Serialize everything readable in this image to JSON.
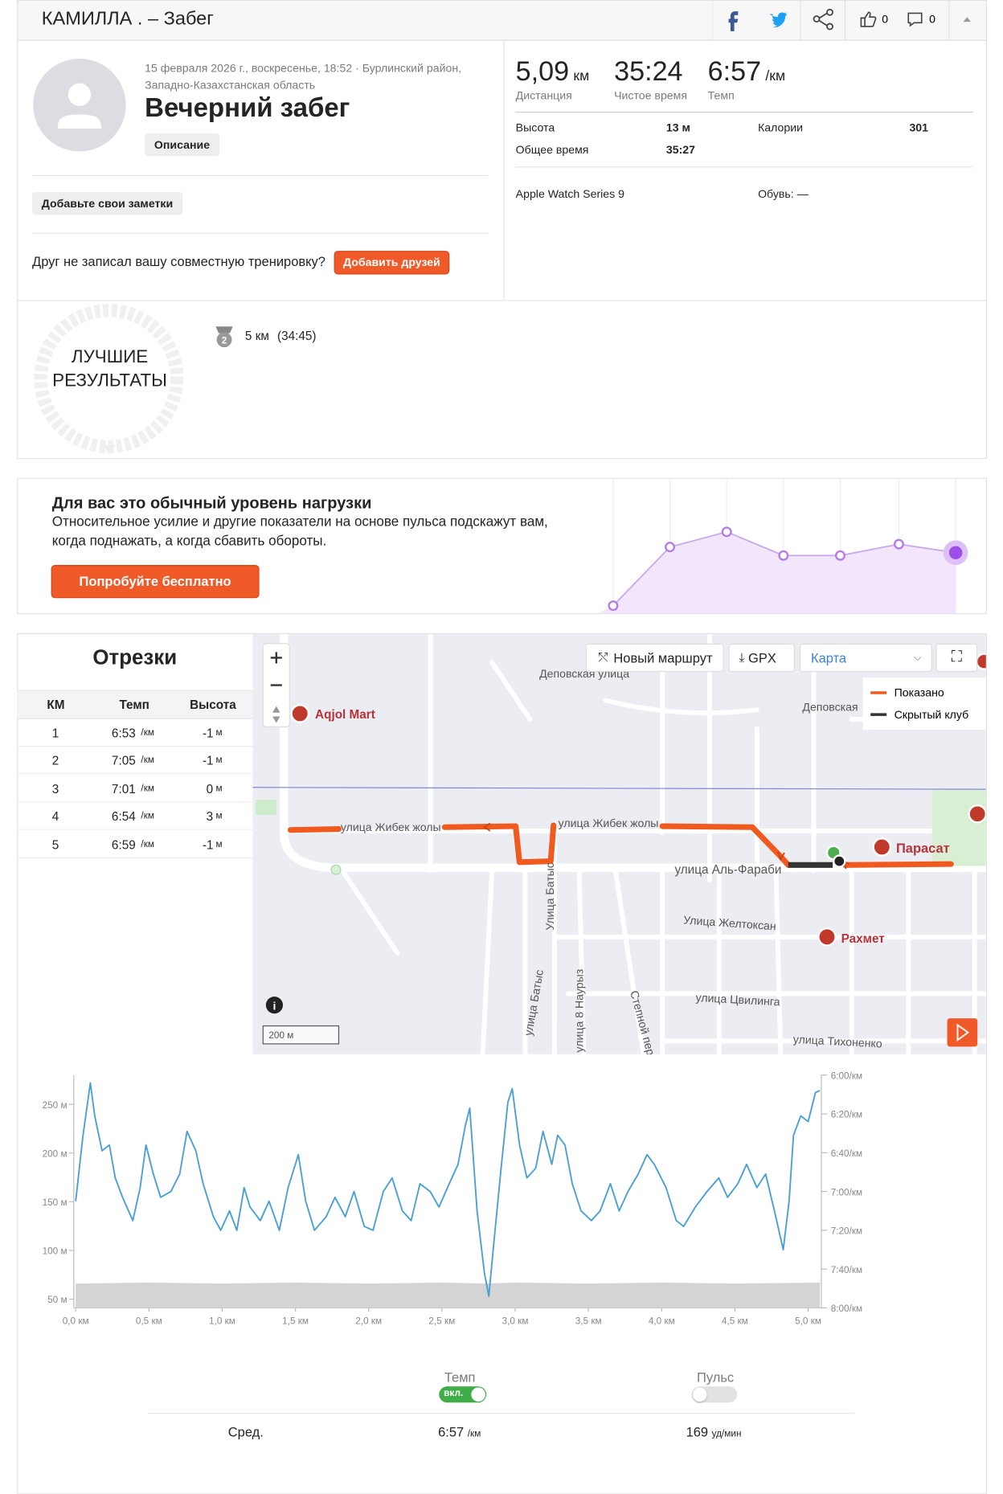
{
  "header": {
    "title": "КАМИЛЛА . – Забег",
    "likes": "0",
    "comments": "0"
  },
  "activity": {
    "date": "15 февраля 2026 г., воскресенье, 18:52 · Бурлинский район,",
    "region": "Западно-Казахстанская область",
    "title": "Вечерний забег",
    "description_button": "Описание",
    "notes_button": "Добавьте свои заметки",
    "friend_prompt": "Друг не записал вашу совместную тренировку?",
    "add_friends_button": "Добавить друзей"
  },
  "stats": {
    "primary": [
      {
        "value": "5,09",
        "unit": "км",
        "label": "Дистанция"
      },
      {
        "value": "35:24",
        "label": "Чистое время"
      },
      {
        "value": "6:57",
        "unit": "/км",
        "label": "Темп"
      }
    ],
    "details": [
      {
        "label": "Высота",
        "value": "13 м"
      },
      {
        "label": "Калории",
        "value": "301"
      },
      {
        "label": "Общее время",
        "value": "35:27"
      }
    ],
    "device": "Apple Watch Series 9",
    "shoes": "Обувь: —"
  },
  "best_results": {
    "title": [
      "ЛУЧШИЕ",
      "РЕЗУЛЬТАТЫ"
    ],
    "medal_rank": "2",
    "distance": "5 км",
    "time": "(34:45)"
  },
  "promo": {
    "title": "Для вас это обычный уровень нагрузки",
    "text": [
      "Относительное усилие и другие показатели на основе пульса подскажут вам,",
      "когда поднажать, а когда сбавить обороты."
    ],
    "button": "Попробуйте бесплатно"
  },
  "splits": {
    "title": "Отрезки",
    "columns": [
      "КМ",
      "Темп",
      "Высота"
    ],
    "rows": [
      [
        "1",
        "6:53",
        "/км",
        "-1",
        "м"
      ],
      [
        "2",
        "7:05",
        "/км",
        "-1",
        "м"
      ],
      [
        "3",
        "7:01",
        "/км",
        "0",
        "м"
      ],
      [
        "4",
        "6:54",
        "/км",
        "3",
        "м"
      ],
      [
        "5",
        "6:59",
        "/км",
        "-1",
        "м"
      ]
    ]
  },
  "map": {
    "new_route": "Новый маршрут",
    "gpx": "GPX",
    "map_type": "Карта",
    "legend": [
      "Показано",
      "Скрытый клуб"
    ],
    "scale": "200 м",
    "streets": [
      "Деповская улица",
      "Деповская",
      "улица Жибек жолы",
      "улица Жибек жолы",
      "улица Аль-Фараби",
      "Улица Батыс",
      "Улица Желтоксан",
      "улица Батыс",
      "улица 8 Наурыз",
      "Степной пер.",
      "улица Цвилинга",
      "улица Тихоненко"
    ],
    "places": [
      "Aqjol Mart",
      "Парасат",
      "Рахмет"
    ]
  },
  "chart_data": {
    "type": "line",
    "xlim": [
      0,
      5.09
    ],
    "xticks": [
      {
        "value": 0,
        "label": "0,0 км"
      },
      {
        "value": 0.5,
        "label": "0,5 км"
      },
      {
        "value": 1,
        "label": "1,0 км"
      },
      {
        "value": 1.5,
        "label": "1,5 км"
      },
      {
        "value": 2,
        "label": "2,0 км"
      },
      {
        "value": 2.5,
        "label": "2,5 км"
      },
      {
        "value": 3,
        "label": "3,0 км"
      },
      {
        "value": 3.5,
        "label": "3,5 км"
      },
      {
        "value": 4,
        "label": "4,0 км"
      },
      {
        "value": 4.5,
        "label": "4,5 км"
      },
      {
        "value": 5,
        "label": "5,0 км"
      }
    ],
    "ylim": [
      41,
      280
    ],
    "yticks": [
      {
        "value": 50,
        "label": "50 м"
      },
      {
        "value": 100,
        "label": "100 м"
      },
      {
        "value": 150,
        "label": "150 м"
      },
      {
        "value": 200,
        "label": "200 м"
      },
      {
        "value": 250,
        "label": "250 м"
      }
    ],
    "y2lim": [
      480,
      360
    ],
    "y2ticks": [
      {
        "value": 360,
        "label": "6:00/км"
      },
      {
        "value": 380,
        "label": "6:20/км"
      },
      {
        "value": 400,
        "label": "6:40/км"
      },
      {
        "value": 420,
        "label": "7:00/км"
      },
      {
        "value": 440,
        "label": "7:20/км"
      },
      {
        "value": 460,
        "label": "7:40/км"
      },
      {
        "value": 480,
        "label": "8:00/км"
      }
    ],
    "grid": false,
    "series": [
      {
        "type": "area",
        "color": "#d4d4d4",
        "x": [
          0,
          0.5,
          1,
          1.5,
          2,
          2.5,
          2.8,
          3,
          3.5,
          4,
          4.5,
          5.08
        ],
        "values": [
          66,
          67,
          66,
          67,
          66,
          67,
          66,
          67,
          66,
          67,
          66,
          67
        ]
      },
      {
        "axis": "y2",
        "color": "#4a9fd4",
        "x": [
          0,
          0.05,
          0.1,
          0.13,
          0.18,
          0.23,
          0.27,
          0.32,
          0.39,
          0.44,
          0.48,
          0.53,
          0.58,
          0.65,
          0.71,
          0.76,
          0.82,
          0.87,
          0.94,
          0.99,
          1.05,
          1.1,
          1.15,
          1.19,
          1.26,
          1.32,
          1.39,
          1.45,
          1.52,
          1.57,
          1.63,
          1.71,
          1.77,
          1.84,
          1.9,
          1.97,
          2.03,
          2.1,
          2.16,
          2.23,
          2.29,
          2.35,
          2.42,
          2.48,
          2.55,
          2.61,
          2.66,
          2.69,
          2.74,
          2.79,
          2.82,
          2.85,
          2.9,
          2.95,
          2.98,
          3.03,
          3.08,
          3.14,
          3.19,
          3.25,
          3.29,
          3.34,
          3.39,
          3.45,
          3.52,
          3.58,
          3.65,
          3.71,
          3.77,
          3.84,
          3.9,
          3.95,
          4.03,
          4.1,
          4.15,
          4.23,
          4.31,
          4.39,
          4.45,
          4.52,
          4.58,
          4.65,
          4.71,
          4.77,
          4.83,
          4.87,
          4.9,
          4.95,
          5,
          5.05,
          5.08
        ],
        "values": [
          425,
          391,
          364,
          381,
          399,
          396,
          413,
          423,
          435,
          418,
          396,
          411,
          423,
          420,
          411,
          389,
          399,
          416,
          433,
          440,
          430,
          440,
          418,
          428,
          435,
          425,
          440,
          418,
          401,
          425,
          440,
          433,
          423,
          433,
          420,
          438,
          440,
          420,
          413,
          430,
          435,
          416,
          420,
          428,
          416,
          406,
          386,
          377,
          430,
          462,
          474,
          450,
          411,
          374,
          367,
          396,
          413,
          408,
          389,
          406,
          391,
          396,
          416,
          430,
          435,
          430,
          416,
          430,
          420,
          411,
          401,
          406,
          418,
          435,
          438,
          428,
          420,
          413,
          423,
          416,
          406,
          418,
          411,
          430,
          450,
          425,
          391,
          381,
          384,
          369,
          368
        ]
      }
    ]
  },
  "summary": {
    "toggles": [
      {
        "label": "Темп",
        "state": "вкл."
      },
      {
        "label": "Пульс"
      }
    ],
    "avg_label": "Сред.",
    "avg_pace": "6:57",
    "avg_pace_unit": "/км",
    "avg_hr": "169",
    "avg_hr_unit": "уд/мин"
  }
}
